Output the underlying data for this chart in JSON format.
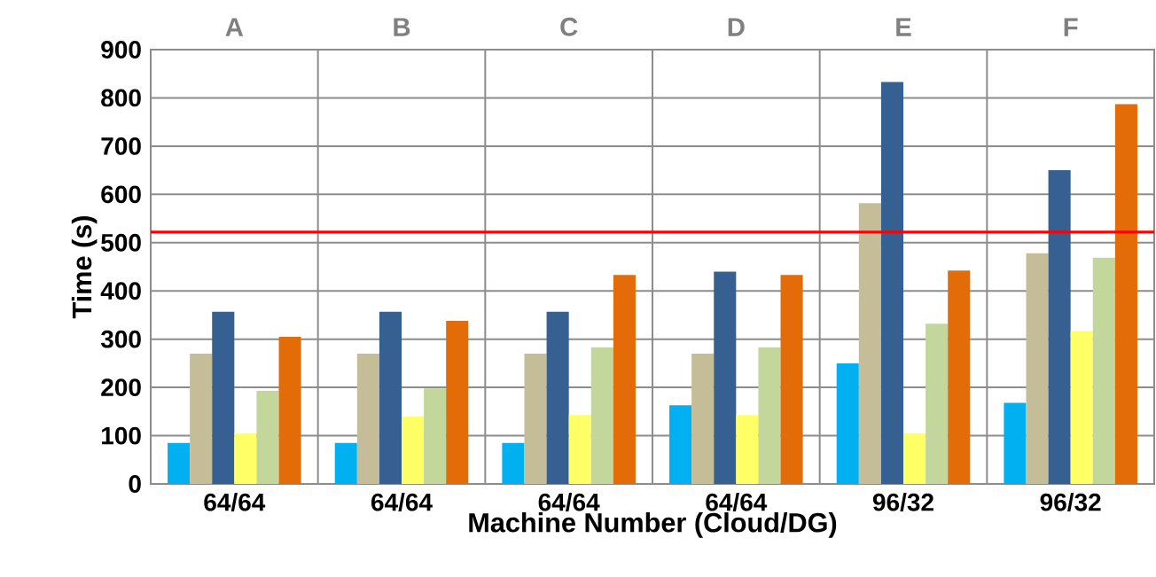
{
  "chart_data": {
    "type": "bar",
    "xlabel": "Machine Number  (Cloud/DG)",
    "ylabel": "Time (s)",
    "categories": [
      "64/64",
      "64/64",
      "64/64",
      "64/64",
      "96/32",
      "96/32"
    ],
    "annotations": [
      "A",
      "B",
      "C",
      "D",
      "E",
      "F"
    ],
    "series": [
      {
        "color": "#00b0f0",
        "values": [
          85,
          85,
          85,
          163,
          250,
          168
        ]
      },
      {
        "color": "#c4bd97",
        "values": [
          270,
          270,
          270,
          270,
          582,
          478
        ]
      },
      {
        "color": "#376092",
        "values": [
          357,
          357,
          357,
          440,
          833,
          650
        ]
      },
      {
        "color": "#ffff66",
        "values": [
          105,
          140,
          143,
          143,
          105,
          317
        ]
      },
      {
        "color": "#c3d69b",
        "values": [
          193,
          198,
          283,
          283,
          332,
          469
        ]
      },
      {
        "color": "#e36c09",
        "values": [
          305,
          338,
          433,
          433,
          442,
          787
        ]
      }
    ],
    "ylim": [
      0,
      900
    ],
    "yticks": [
      0,
      100,
      200,
      300,
      400,
      500,
      600,
      700,
      800,
      900
    ],
    "ref_lines": [
      {
        "axis": "y",
        "value": 522,
        "color": "#ff0000"
      }
    ],
    "grid": true
  }
}
